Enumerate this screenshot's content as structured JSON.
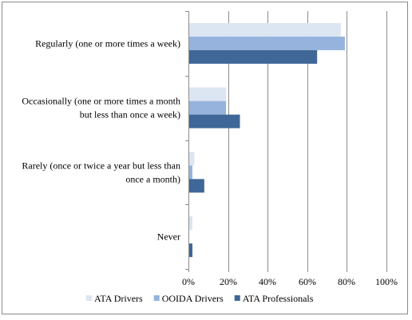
{
  "chart_data": {
    "type": "bar",
    "orientation": "horizontal",
    "categories": [
      [
        "Regularly (one or more times a week)"
      ],
      [
        "Occasionally (one or more times a month",
        "but less than once a week)"
      ],
      [
        "Rarely (once or twice a year but less than",
        "once a month)"
      ],
      [
        "Never"
      ]
    ],
    "series": [
      {
        "name": "ATA Drivers",
        "color": "#dce5f2",
        "values": [
          77,
          19,
          3,
          2
        ]
      },
      {
        "name": "OOIDA Drivers",
        "color": "#95b3dc",
        "values": [
          79,
          19,
          2,
          0
        ]
      },
      {
        "name": "ATA Professionals",
        "color": "#3f6797",
        "values": [
          65,
          26,
          8,
          2
        ]
      }
    ],
    "xlim": [
      0,
      100
    ],
    "x_ticks": [
      "0%",
      "20%",
      "40%",
      "60%",
      "80%",
      "100%"
    ],
    "grid": true,
    "legend_position": "bottom"
  }
}
